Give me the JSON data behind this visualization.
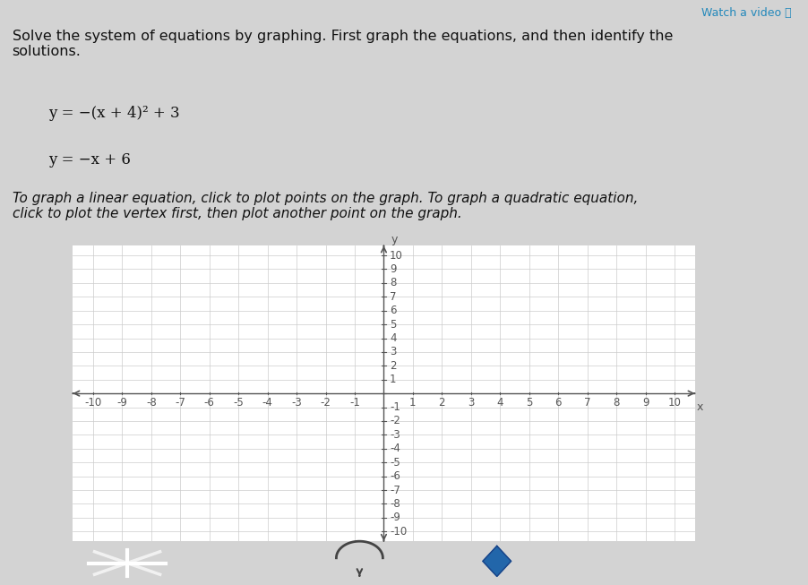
{
  "title_text": "Solve the system of equations by graphing. First graph the equations, and then identify the\nsolutions.",
  "eq1": "y = −(x + 4)² + 3",
  "eq2": "y = −x + 6",
  "instruction": "To graph a linear equation, click to plot points on the graph. To graph a quadratic equation,\nclick to plot the vertex first, then plot another point on the graph.",
  "watch_video": "Watch a video ⓘ",
  "xmin": -10,
  "xmax": 10,
  "ymin": -10,
  "ymax": 10,
  "xlabel": "x",
  "ylabel": "y",
  "grid_color": "#cccccc",
  "axis_color": "#555555",
  "graph_bg": "#ffffff",
  "page_background": "#d3d3d3",
  "text_color": "#111111",
  "title_fontsize": 11.5,
  "eq_fontsize": 12,
  "instruction_fontsize": 11,
  "tick_fontsize": 8.5,
  "blue_button_color": "#3a85c8"
}
